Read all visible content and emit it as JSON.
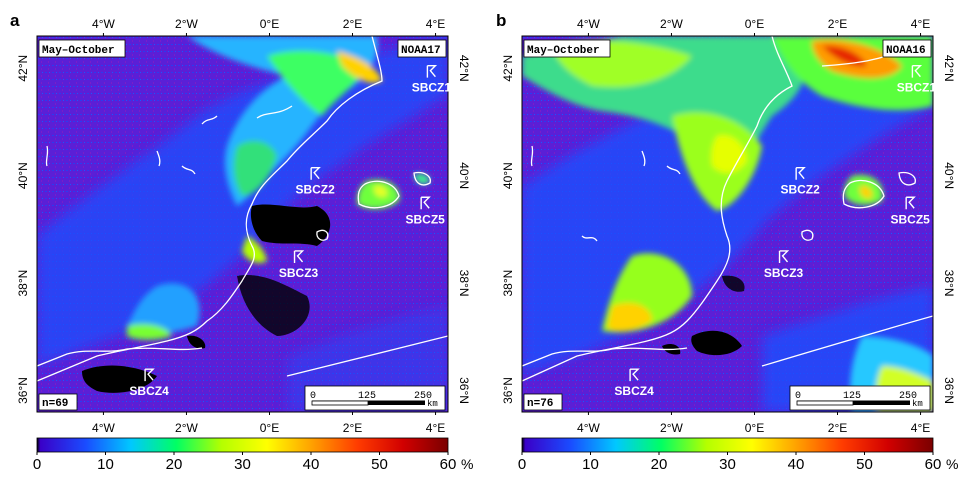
{
  "panels": [
    {
      "letter": "a",
      "period": "May–October",
      "satellite": "NOAA17",
      "n": "n=69",
      "zones": [
        {
          "label": "SBCZ1",
          "lon": 3.9,
          "lat": 41.75
        },
        {
          "label": "SBCZ2",
          "lon": 1.1,
          "lat": 39.85
        },
        {
          "label": "SBCZ3",
          "lon": 0.7,
          "lat": 38.3
        },
        {
          "label": "SBCZ4",
          "lon": -2.9,
          "lat": 36.1
        },
        {
          "label": "SBCZ5",
          "lon": 3.75,
          "lat": 39.3
        }
      ]
    },
    {
      "letter": "b",
      "period": "May–October",
      "satellite": "NOAA16",
      "n": "n=76",
      "zones": [
        {
          "label": "SBCZ1",
          "lon": 3.9,
          "lat": 41.75
        },
        {
          "label": "SBCZ2",
          "lon": 1.1,
          "lat": 39.85
        },
        {
          "label": "SBCZ3",
          "lon": 0.7,
          "lat": 38.3
        },
        {
          "label": "SBCZ4",
          "lon": -2.9,
          "lat": 36.1
        },
        {
          "label": "SBCZ5",
          "lon": 3.75,
          "lat": 39.3
        }
      ]
    }
  ],
  "axes": {
    "top_labels": [
      "4°W",
      "2°W",
      "0°E",
      "2°E",
      "4°E"
    ],
    "top_lons": [
      -4,
      -2,
      0,
      2,
      4
    ],
    "bottom_labels": [
      "4°W",
      "2°W",
      "0°E",
      "2°E",
      "4°E"
    ],
    "bottom_lons": [
      -4,
      -2,
      0,
      2,
      4
    ],
    "left_labels": [
      "42°N",
      "40°N",
      "38°N",
      "36°N"
    ],
    "left_lats": [
      42,
      40,
      38,
      36
    ],
    "right_labels": [
      "42°N",
      "40°N",
      "38°N",
      "36°N"
    ],
    "right_lats": [
      42,
      40,
      38,
      36
    ],
    "lon_range": [
      -5.6,
      4.3
    ],
    "lat_range": [
      35.6,
      42.6
    ]
  },
  "scale_bar": {
    "ticks": [
      "0",
      "125",
      "250"
    ],
    "unit": "km"
  },
  "colorbar": {
    "ticks": [
      "0",
      "10",
      "20",
      "30",
      "40",
      "50",
      "60"
    ],
    "unit": "%",
    "range": [
      0,
      60
    ],
    "colors": [
      "#000000",
      "#3a00c8",
      "#1a4cff",
      "#00c8ff",
      "#00ff64",
      "#b4ff00",
      "#ffff00",
      "#ffa000",
      "#ff3c00",
      "#d20000",
      "#7a0000"
    ]
  }
}
